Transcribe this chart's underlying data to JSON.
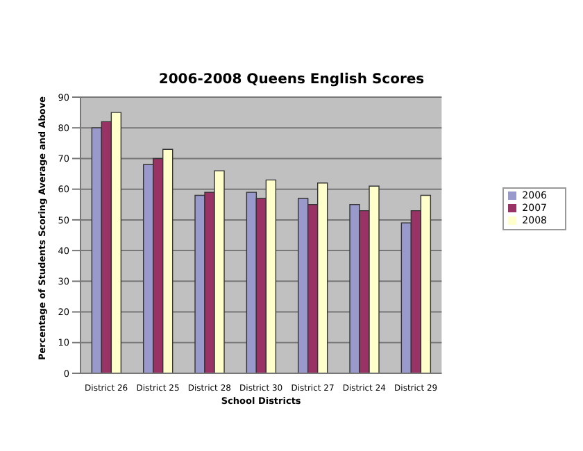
{
  "chart_data": {
    "type": "bar",
    "title": "2006-2008 Queens English Scores",
    "xlabel": "School Districts",
    "ylabel": "Percentage of Students Scoring Average and Above",
    "categories": [
      "District 26",
      "District 25",
      "District 28",
      "District 30",
      "District 27",
      "District 24",
      "District 29"
    ],
    "series": [
      {
        "name": "2006",
        "color": "#9999cc",
        "values": [
          80,
          68,
          58,
          59,
          57,
          55,
          49
        ]
      },
      {
        "name": "2007",
        "color": "#993366",
        "values": [
          82,
          70,
          59,
          57,
          55,
          53,
          53
        ]
      },
      {
        "name": "2008",
        "color": "#ffffcc",
        "values": [
          85,
          73,
          66,
          63,
          62,
          61,
          58
        ]
      }
    ],
    "ylim": [
      0,
      90
    ],
    "yticks": [
      0,
      10,
      20,
      30,
      40,
      50,
      60,
      70,
      80,
      90
    ],
    "grid": "y",
    "legend": "right"
  }
}
